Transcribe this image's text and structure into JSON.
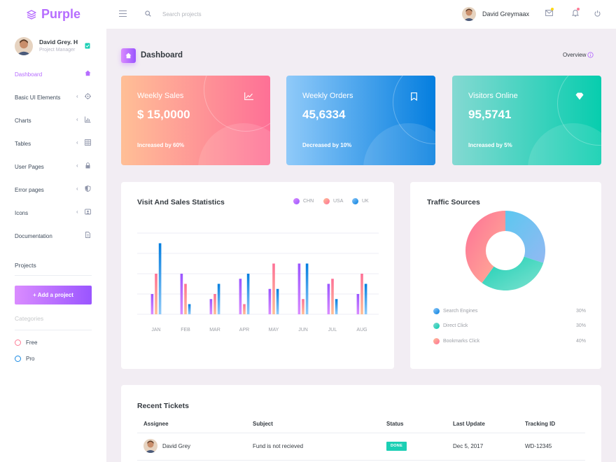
{
  "brand": {
    "name": "Purple"
  },
  "navbar": {
    "search_placeholder": "Search projects",
    "profile_name": "David Greymaax"
  },
  "sidebar": {
    "profile": {
      "name": "David Grey. H",
      "role": "Project Manager"
    },
    "items": [
      {
        "label": "Dashboard",
        "icon": "home-icon",
        "active": true
      },
      {
        "label": "Basic UI Elements",
        "icon": "crosshairs-icon"
      },
      {
        "label": "Charts",
        "icon": "chart-bar-icon"
      },
      {
        "label": "Tables",
        "icon": "table-icon"
      },
      {
        "label": "User Pages",
        "icon": "lock-icon"
      },
      {
        "label": "Error pages",
        "icon": "shield-icon"
      },
      {
        "label": "Icons",
        "icon": "contacts-icon"
      },
      {
        "label": "Documentation",
        "icon": "document-icon"
      }
    ],
    "projects_label": "Projects",
    "add_project_label": "+ Add a project",
    "categories_label": "Categories",
    "categories": [
      {
        "label": "Free",
        "color": "#fe7c96"
      },
      {
        "label": "Pro",
        "color": "#198ae3"
      }
    ]
  },
  "page": {
    "title": "Dashboard",
    "overview_label": "Overview"
  },
  "stats": [
    {
      "label": "Weekly Sales",
      "value": "$ 15,0000",
      "change": "Increased by 60%",
      "icon": "chart-line-icon",
      "gradient": [
        "#ffbf96",
        "#fe7096"
      ]
    },
    {
      "label": "Weekly Orders",
      "value": "45,6334",
      "change": "Decreased by 10%",
      "icon": "bookmark-icon",
      "gradient": [
        "#90caf9",
        "#047edf"
      ]
    },
    {
      "label": "Visitors Online",
      "value": "95,5741",
      "change": "Increased by 5%",
      "icon": "diamond-icon",
      "gradient": [
        "#84d9d2",
        "#07cdae"
      ]
    }
  ],
  "visit_sales": {
    "title": "Visit And Sales Statistics",
    "chart_data": {
      "type": "bar",
      "categories": [
        "JAN",
        "FEB",
        "MAR",
        "APR",
        "MAY",
        "JUN",
        "JUL",
        "AUG"
      ],
      "series": [
        {
          "name": "CHN",
          "color": "#b66dff",
          "values": [
            20,
            40,
            15,
            35,
            25,
            50,
            30,
            20
          ]
        },
        {
          "name": "USA",
          "color": "#fe9496",
          "values": [
            40,
            30,
            20,
            10,
            50,
            15,
            35,
            40
          ]
        },
        {
          "name": "UK",
          "color": "#5fb3e8",
          "values": [
            70,
            10,
            30,
            40,
            25,
            50,
            15,
            30
          ]
        }
      ],
      "ylim": [
        0,
        80
      ],
      "grid": true,
      "legend": "top-right"
    }
  },
  "traffic": {
    "title": "Traffic Sources",
    "chart_data": {
      "type": "pie",
      "categories": [
        "Search Engines",
        "Direct Click",
        "Bookmarks Click"
      ],
      "values": [
        30,
        30,
        40
      ],
      "colors": [
        "#4fc3f0",
        "#1bcfb4",
        "#fe7c96"
      ],
      "value_labels": [
        "30%",
        "30%",
        "40%"
      ]
    }
  },
  "tickets": {
    "title": "Recent Tickets",
    "columns": [
      "Assignee",
      "Subject",
      "Status",
      "Last Update",
      "Tracking ID"
    ],
    "rows": [
      {
        "assignee": "David Grey",
        "subject": "Fund is not recieved",
        "status": "DONE",
        "last_update": "Dec 5, 2017",
        "tracking_id": "WD-12345"
      }
    ]
  }
}
